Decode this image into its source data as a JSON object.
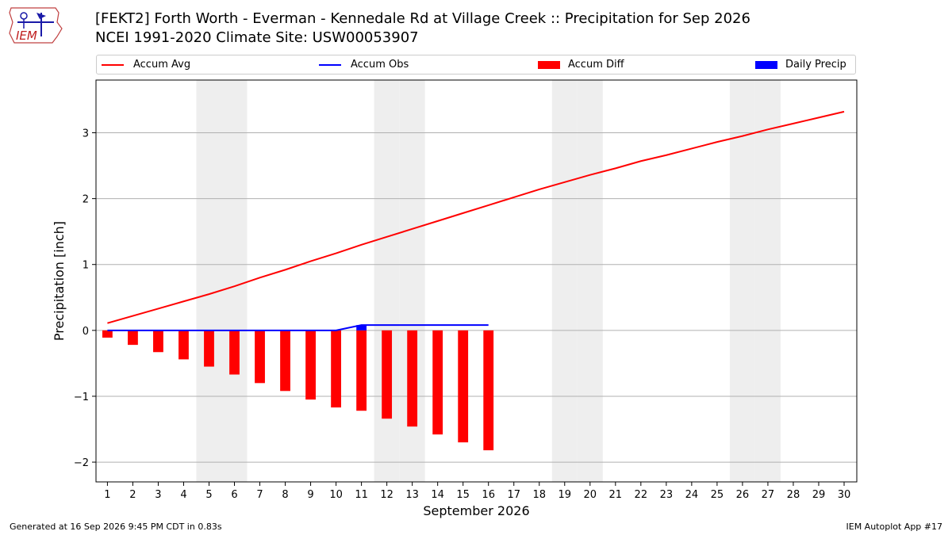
{
  "logo": {
    "text": "IEM"
  },
  "title_line1": "[FEKT2] Forth Worth - Everman - Kennedale Rd at Village Creek :: Precipitation for Sep 2026",
  "title_line2": "NCEI 1991-2020 Climate Site: USW00053907",
  "footer_left": "Generated at 16 Sep 2026 9:45 PM CDT in 0.83s",
  "footer_right": "IEM Autoplot App #17",
  "colors": {
    "avg": "#ff0000",
    "obs": "#0000ff",
    "diff": "#ff0000",
    "daily": "#0000ff",
    "weekend": "#eeeeee",
    "grid": "#b0b0b0"
  },
  "chart_data": {
    "type": "bar",
    "xlabel": "September 2026",
    "ylabel": "Precipitation [inch]",
    "ylim": [
      -2.3,
      3.8
    ],
    "xlim": [
      0.55,
      30.5
    ],
    "yticks": [
      -2,
      -1,
      0,
      1,
      2,
      3
    ],
    "ytick_labels": [
      "−2",
      "−1",
      "0",
      "1",
      "2",
      "3"
    ],
    "grid": "horizontal",
    "legend_position": "top",
    "days": [
      1,
      2,
      3,
      4,
      5,
      6,
      7,
      8,
      9,
      10,
      11,
      12,
      13,
      14,
      15,
      16,
      17,
      18,
      19,
      20,
      21,
      22,
      23,
      24,
      25,
      26,
      27,
      28,
      29,
      30
    ],
    "weekend_days": [
      5,
      6,
      12,
      13,
      19,
      20,
      26,
      27
    ],
    "series": [
      {
        "name": "Accum Avg",
        "kind": "line",
        "x": [
          1,
          2,
          3,
          4,
          5,
          6,
          7,
          8,
          9,
          10,
          11,
          12,
          13,
          14,
          15,
          16,
          17,
          18,
          19,
          20,
          21,
          22,
          23,
          24,
          25,
          26,
          27,
          28,
          29,
          30
        ],
        "values": [
          0.11,
          0.22,
          0.33,
          0.44,
          0.55,
          0.67,
          0.8,
          0.92,
          1.05,
          1.17,
          1.3,
          1.42,
          1.54,
          1.66,
          1.78,
          1.9,
          2.02,
          2.14,
          2.25,
          2.36,
          2.46,
          2.57,
          2.66,
          2.76,
          2.86,
          2.95,
          3.05,
          3.14,
          3.23,
          3.32
        ]
      },
      {
        "name": "Accum Obs",
        "kind": "line",
        "x": [
          1,
          2,
          3,
          4,
          5,
          6,
          7,
          8,
          9,
          10,
          11,
          12,
          13,
          14,
          15,
          16
        ],
        "values": [
          0,
          0,
          0,
          0,
          0,
          0,
          0,
          0,
          0,
          0,
          0.08,
          0.08,
          0.08,
          0.08,
          0.08,
          0.08
        ]
      },
      {
        "name": "Accum Diff",
        "kind": "bar",
        "x": [
          1,
          2,
          3,
          4,
          5,
          6,
          7,
          8,
          9,
          10,
          11,
          12,
          13,
          14,
          15,
          16
        ],
        "values": [
          -0.11,
          -0.22,
          -0.33,
          -0.44,
          -0.55,
          -0.67,
          -0.8,
          -0.92,
          -1.05,
          -1.17,
          -1.22,
          -1.34,
          -1.46,
          -1.58,
          -1.7,
          -1.82
        ]
      },
      {
        "name": "Daily Precip",
        "kind": "bar",
        "x": [
          11
        ],
        "values": [
          0.08
        ]
      }
    ]
  }
}
